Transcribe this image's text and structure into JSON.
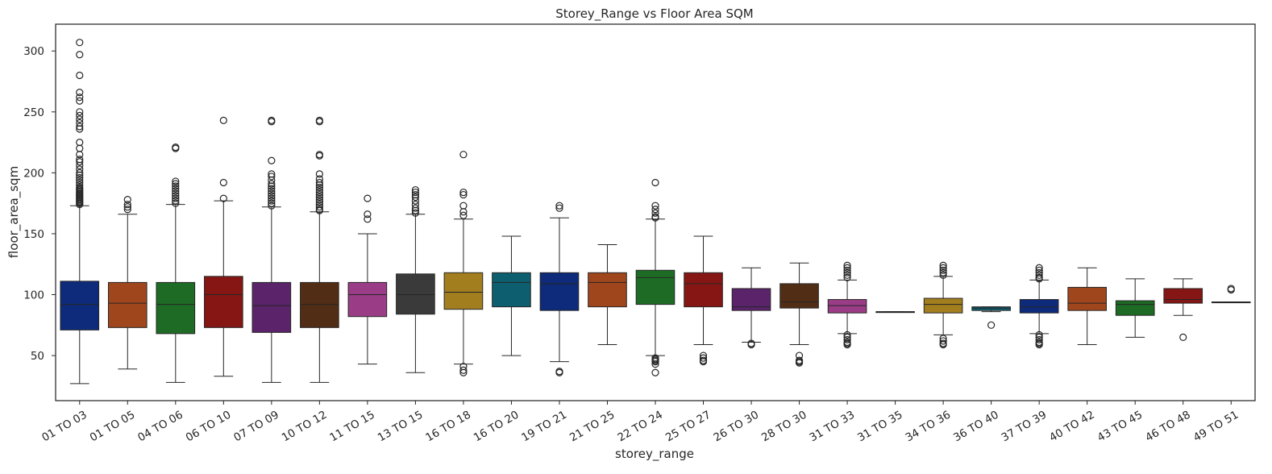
{
  "chart_data": {
    "type": "box",
    "title": "Storey_Range vs Floor Area SQM",
    "xlabel": "storey_range",
    "ylabel": "floor_area_sqm",
    "ylim": [
      13,
      322
    ],
    "yticks": [
      50,
      100,
      150,
      200,
      250,
      300
    ],
    "grid": false,
    "legend": "none",
    "categories": [
      "01 TO 03",
      "01 TO 05",
      "04 TO 06",
      "06 TO 10",
      "07 TO 09",
      "10 TO 12",
      "11 TO 15",
      "13 TO 15",
      "16 TO 18",
      "16 TO 20",
      "19 TO 21",
      "21 TO 25",
      "22 TO 24",
      "25 TO 27",
      "26 TO 30",
      "28 TO 30",
      "31 TO 33",
      "31 TO 35",
      "34 TO 36",
      "36 TO 40",
      "37 TO 39",
      "40 TO 42",
      "43 TO 45",
      "46 TO 48",
      "49 TO 51"
    ],
    "colors": [
      "#0d2b7a",
      "#a0461c",
      "#1d6b24",
      "#861614",
      "#5a236a",
      "#522d15",
      "#9a3d86",
      "#3a3a3a",
      "#a27e1e",
      "#0d5e6e",
      "#0d2b7a",
      "#a0461c",
      "#1d6b24",
      "#861614",
      "#5a236a",
      "#522d15",
      "#9a3d86",
      "#3a3a3a",
      "#a27e1e",
      "#0d5e6e",
      "#0d2b7a",
      "#a0461c",
      "#1d6b24",
      "#861614",
      "#5a236a"
    ],
    "boxes": [
      {
        "whislo": 27,
        "q1": 71,
        "med": 92,
        "q3": 111,
        "whishi": 173,
        "fliers": [
          174,
          175,
          176,
          177,
          178,
          179,
          180,
          181,
          182,
          183,
          184,
          185,
          186,
          187,
          188,
          190,
          192,
          194,
          196,
          198,
          200,
          203,
          206,
          209,
          211,
          215,
          220,
          225,
          236,
          238,
          241,
          244,
          247,
          250,
          259,
          262,
          266,
          280,
          297,
          307
        ]
      },
      {
        "whislo": 39,
        "q1": 73,
        "med": 93,
        "q3": 110,
        "whishi": 166,
        "fliers": [
          170,
          172,
          174,
          178
        ]
      },
      {
        "whislo": 28,
        "q1": 68,
        "med": 92,
        "q3": 110,
        "whishi": 174,
        "fliers": [
          175,
          177,
          179,
          181,
          183,
          185,
          187,
          189,
          191,
          193,
          220,
          221
        ]
      },
      {
        "whislo": 33,
        "q1": 73,
        "med": 100,
        "q3": 115,
        "whishi": 177,
        "fliers": [
          179,
          192,
          243
        ]
      },
      {
        "whislo": 28,
        "q1": 69,
        "med": 91,
        "q3": 110,
        "whishi": 172,
        "fliers": [
          173,
          175,
          177,
          179,
          181,
          183,
          185,
          187,
          189,
          191,
          194,
          197,
          199,
          210,
          242,
          243
        ]
      },
      {
        "whislo": 28,
        "q1": 73,
        "med": 92,
        "q3": 110,
        "whishi": 168,
        "fliers": [
          169,
          170,
          172,
          174,
          176,
          178,
          180,
          182,
          184,
          186,
          188,
          190,
          192,
          195,
          199,
          214,
          215,
          242,
          243
        ]
      },
      {
        "whislo": 43,
        "q1": 82,
        "med": 100,
        "q3": 110,
        "whishi": 150,
        "fliers": [
          162,
          166,
          179
        ]
      },
      {
        "whislo": 36,
        "q1": 84,
        "med": 100,
        "q3": 117,
        "whishi": 166,
        "fliers": [
          167,
          169,
          171,
          174,
          177,
          180,
          182,
          184,
          186
        ]
      },
      {
        "whislo": 43,
        "q1": 88,
        "med": 102,
        "q3": 118,
        "whishi": 162,
        "fliers": [
          36,
          38,
          41,
          165,
          168,
          173,
          182,
          184,
          215
        ]
      },
      {
        "whislo": 50,
        "q1": 90,
        "med": 110,
        "q3": 118,
        "whishi": 148,
        "fliers": []
      },
      {
        "whislo": 45,
        "q1": 87,
        "med": 109,
        "q3": 118,
        "whishi": 163,
        "fliers": [
          36,
          37,
          171,
          173
        ]
      },
      {
        "whislo": 59,
        "q1": 90,
        "med": 110,
        "q3": 118,
        "whishi": 141,
        "fliers": []
      },
      {
        "whislo": 50,
        "q1": 92,
        "med": 114,
        "q3": 120,
        "whishi": 162,
        "fliers": [
          36,
          43,
          45,
          46,
          47,
          48,
          163,
          164,
          167,
          170,
          173,
          192
        ]
      },
      {
        "whislo": 59,
        "q1": 90,
        "med": 109,
        "q3": 118,
        "whishi": 148,
        "fliers": [
          45,
          46,
          48,
          50
        ]
      },
      {
        "whislo": 61,
        "q1": 87,
        "med": 90,
        "q3": 105,
        "whishi": 122,
        "fliers": [
          59,
          60
        ]
      },
      {
        "whislo": 59,
        "q1": 89,
        "med": 94,
        "q3": 109,
        "whishi": 126,
        "fliers": [
          44,
          45,
          46,
          50
        ]
      },
      {
        "whislo": 68,
        "q1": 85,
        "med": 91,
        "q3": 96,
        "whishi": 112,
        "fliers": [
          59,
          60,
          61,
          63,
          65,
          67,
          114,
          116,
          118,
          120,
          122,
          124
        ]
      },
      {
        "whislo": 86,
        "q1": 86,
        "med": 86,
        "q3": 86,
        "whishi": 86,
        "fliers": []
      },
      {
        "whislo": 67,
        "q1": 85,
        "med": 92,
        "q3": 97,
        "whishi": 115,
        "fliers": [
          59,
          60,
          62,
          64,
          116,
          118,
          120,
          122,
          124
        ]
      },
      {
        "whislo": 86,
        "q1": 87,
        "med": 89,
        "q3": 90,
        "whishi": 90,
        "fliers": [
          75
        ]
      },
      {
        "whislo": 68,
        "q1": 85,
        "med": 90,
        "q3": 96,
        "whishi": 112,
        "fliers": [
          59,
          60,
          61,
          63,
          65,
          67,
          113,
          114,
          116,
          118,
          120,
          122
        ]
      },
      {
        "whislo": 59,
        "q1": 87,
        "med": 93,
        "q3": 106,
        "whishi": 122,
        "fliers": []
      },
      {
        "whislo": 65,
        "q1": 83,
        "med": 92,
        "q3": 95,
        "whishi": 113,
        "fliers": []
      },
      {
        "whislo": 83,
        "q1": 93,
        "med": 96,
        "q3": 105,
        "whishi": 113,
        "fliers": [
          65
        ]
      },
      {
        "whislo": 94,
        "q1": 94,
        "med": 94,
        "q3": 94,
        "whishi": 94,
        "fliers": [
          104,
          105
        ]
      }
    ]
  }
}
